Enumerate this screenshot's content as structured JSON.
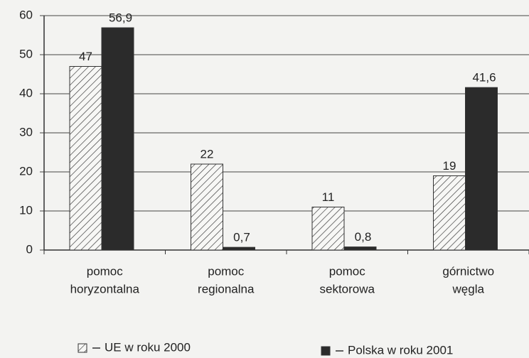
{
  "chart_data": {
    "type": "bar",
    "categories": [
      [
        "pomoc",
        "horyzontalna"
      ],
      [
        "pomoc",
        "regionalna"
      ],
      [
        "pomoc",
        "sektorowa"
      ],
      [
        "górnictwo",
        "węgla"
      ]
    ],
    "series": [
      {
        "name": "UE w roku 2000",
        "color": "#333333",
        "pattern": "hatch",
        "values": [
          47,
          22,
          11,
          19
        ]
      },
      {
        "name": "Polska w roku 2001",
        "color": "#2b2b2b",
        "values": [
          56.9,
          0.7,
          0.8,
          41.6
        ],
        "value_labels": [
          "56,9",
          "0,7",
          "0,8",
          "41,6"
        ]
      }
    ],
    "ylim": [
      0,
      60
    ],
    "yticks": [
      0,
      10,
      20,
      30,
      40,
      50,
      60
    ],
    "grid": true
  }
}
